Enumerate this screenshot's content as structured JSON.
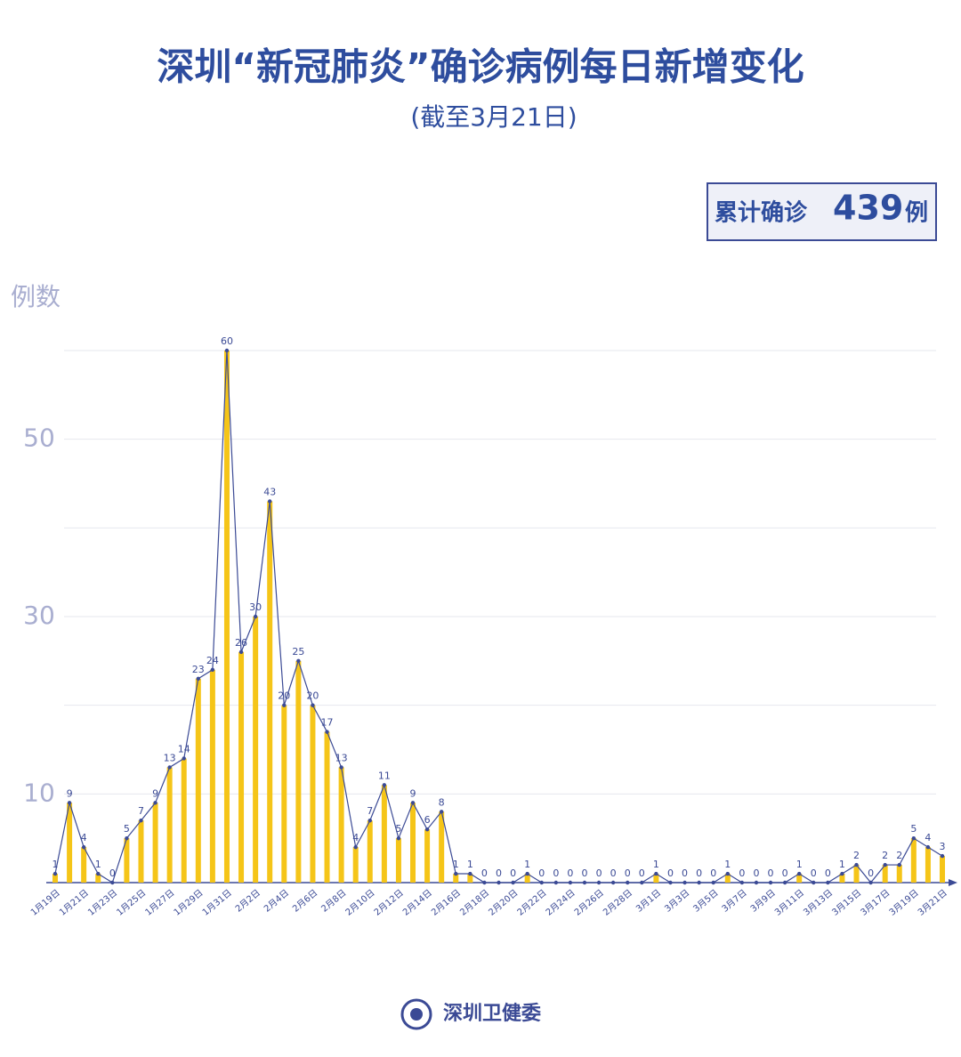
{
  "chart_data": {
    "type": "bar-line",
    "title": "深圳“新冠肺炎”确诊病例每日新增变化",
    "subtitle": "(截至3月21日)",
    "y_label": "例数",
    "annotation": {
      "prefix": "累计确诊",
      "value": 439,
      "suffix": "例"
    },
    "source": "深圳卫健委",
    "categories": [
      "1月19日",
      null,
      "1月21日",
      null,
      "1月23日",
      null,
      "1月25日",
      null,
      "1月27日",
      null,
      "1月29日",
      null,
      "1月31日",
      null,
      "2月2日",
      null,
      "2月4日",
      null,
      "2月6日",
      null,
      "2月8日",
      null,
      "2月10日",
      null,
      "2月12日",
      null,
      "2月14日",
      null,
      "2月16日",
      null,
      "2月18日",
      null,
      "2月20日",
      null,
      "2月22日",
      null,
      "2月24日",
      null,
      "2月26日",
      null,
      "2月28日",
      null,
      "3月1日",
      null,
      "3月3日",
      null,
      "3月5日",
      null,
      "3月7日",
      null,
      "3月9日",
      null,
      "3月11日",
      null,
      "3月13日",
      null,
      "3月15日",
      null,
      "3月17日",
      null,
      "3月19日",
      null,
      "3月21日"
    ],
    "values": [
      1,
      9,
      4,
      1,
      0,
      5,
      7,
      9,
      13,
      14,
      23,
      24,
      60,
      26,
      30,
      43,
      20,
      25,
      20,
      17,
      13,
      4,
      7,
      11,
      5,
      9,
      6,
      8,
      1,
      1,
      0,
      0,
      0,
      1,
      0,
      0,
      0,
      0,
      0,
      0,
      0,
      0,
      1,
      0,
      0,
      0,
      0,
      1,
      0,
      0,
      0,
      0,
      1,
      0,
      0,
      1,
      2,
      0,
      2,
      2,
      5,
      4,
      3
    ],
    "bar_color": "#f5c518",
    "line_color": "#3b4a95",
    "ylim": [
      0,
      60
    ],
    "yticks": [
      10,
      30,
      50
    ],
    "grid_lines": [
      10,
      20,
      30,
      40,
      50,
      60
    ],
    "grid": true
  }
}
